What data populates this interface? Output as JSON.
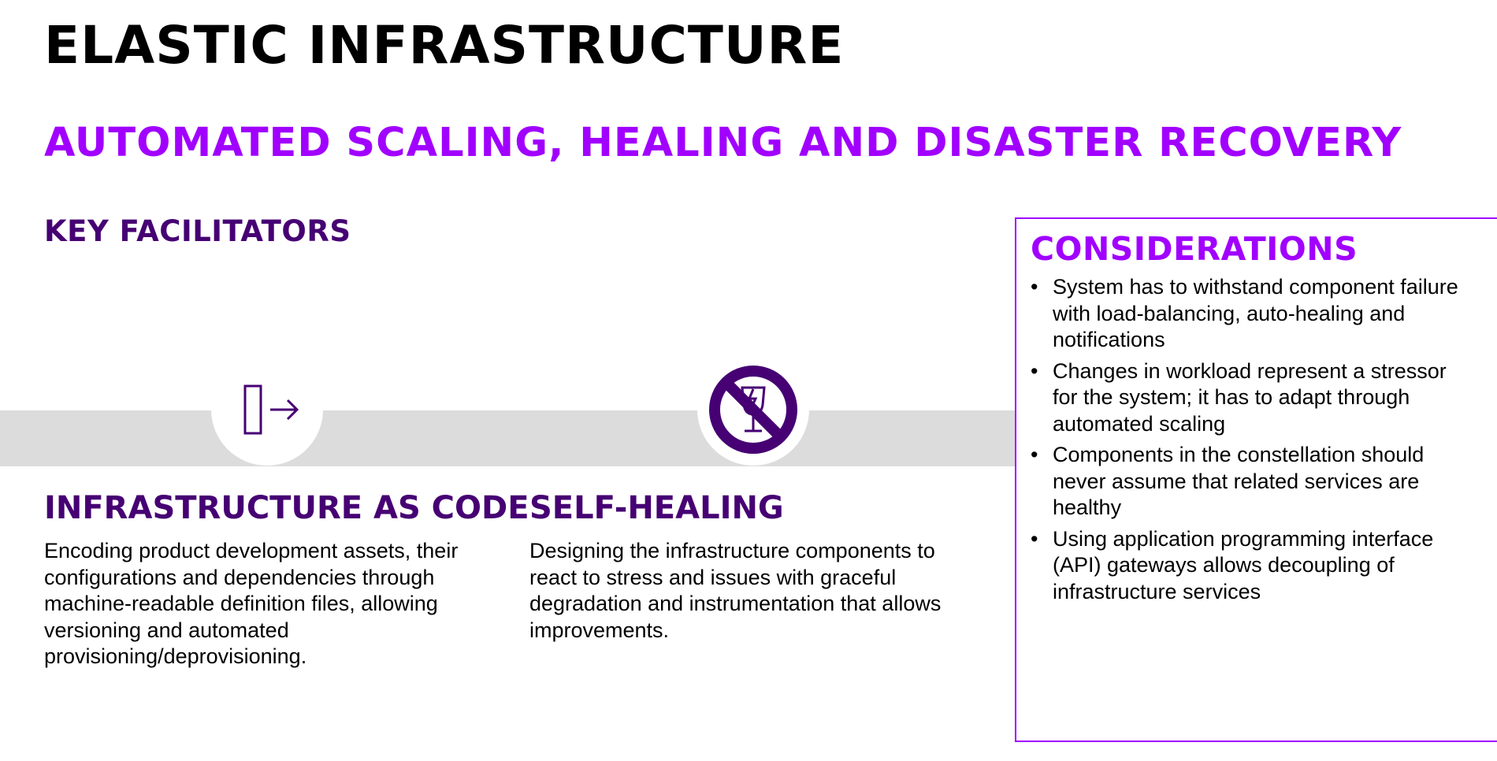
{
  "title": "ELASTIC INFRASTRUCTURE",
  "subtitle": "AUTOMATED SCALING, HEALING AND DISASTER RECOVERY",
  "section_label": "KEY FACILITATORS",
  "facilitators": [
    {
      "icon": "exit-arrow-icon",
      "title": "INFRASTRUCTURE AS CODE",
      "text": "Encoding product development assets, their configurations and dependencies through machine-readable definition files, allowing versioning and automated provisioning/deprovisioning."
    },
    {
      "icon": "no-fragile-glass-icon",
      "title": "SELF-HEALING",
      "text": "Designing the infrastructure components to react to stress and issues with graceful degradation and instrumentation that allows improvements."
    }
  ],
  "considerations": {
    "title": "CONSIDERATIONS",
    "items": [
      "System has to withstand component failure with load-balancing, auto-healing and notifications",
      "Changes in workload represent a stressor for the system; it has to adapt through automated scaling",
      "Components in the constellation should never assume that related services are healthy",
      "Using application programming interface (API) gateways allows decoupling of infrastructure services"
    ]
  },
  "colors": {
    "accent_purple": "#a100ff",
    "dark_purple": "#460073",
    "band_gray": "#dcdcdc"
  }
}
